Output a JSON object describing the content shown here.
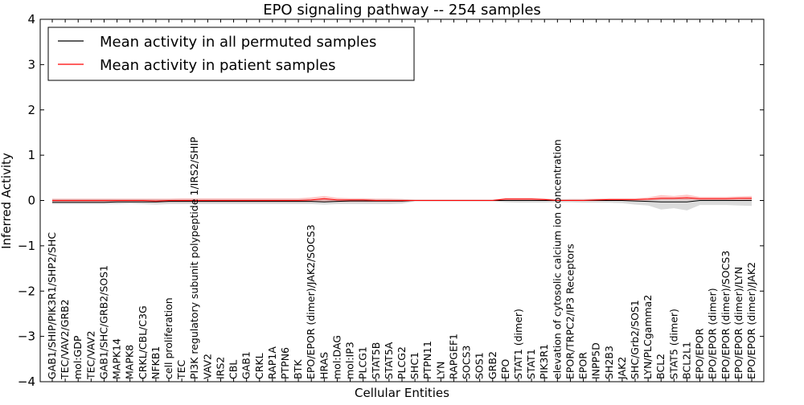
{
  "chart_data": {
    "type": "line",
    "title": "EPO signaling pathway -- 254 samples",
    "xlabel": "Cellular Entities",
    "ylabel": "Inferred Activity",
    "ylim": [
      -4,
      4
    ],
    "yticks": [
      -4,
      -3,
      -2,
      -1,
      0,
      1,
      2,
      3,
      4
    ],
    "ytick_labels": [
      "−4",
      "−3",
      "−2",
      "−1",
      "0",
      "1",
      "2",
      "3",
      "4"
    ],
    "legend": {
      "position": "top-left"
    },
    "categories": [
      "GAB1/SHIP/PIK3R1/SHP2/SHC",
      "TEC/VAV2/GRB2",
      "mol:GDP",
      "TEC/VAV2",
      "GAB1/SHC/GRB2/SOS1",
      "MAPK14",
      "MAPK8",
      "CRKL/CBL/C3G",
      "NFKB1",
      "cell proliferation",
      "TEC",
      "PI3K regulatory subunit polypeptide 1/IRS2/SHIP",
      "VAV2",
      "IRS2",
      "CBL",
      "GAB1",
      "CRKL",
      "RAP1A",
      "PTPN6",
      "BTK",
      "EPO/EPOR (dimer)/JAK2/SOCS3",
      "HRAS",
      "mol:DAG",
      "mol:IP3",
      "PLCG1",
      "STAT5B",
      "STAT5A",
      "PLCG2",
      "SHC1",
      "PTPN11",
      "LYN",
      "RAPGEF1",
      "SOCS3",
      "SOS1",
      "GRB2",
      "EPO",
      "STAT1 (dimer)",
      "STAT1",
      "PIK3R1",
      "elevation of cytosolic calcium ion concentration",
      "EPOR/TRPC2/IP3 Receptors",
      "EPOR",
      "INPP5D",
      "SH2B3",
      "JAK2",
      "SHC/Grb2/SOS1",
      "LYN/PLCgamma2",
      "BCL2",
      "STAT5 (dimer)",
      "BCL2L1",
      "EPO/EPOR",
      "EPO/EPOR (dimer)",
      "EPO/EPOR (dimer)/SOCS3",
      "EPO/EPOR (dimer)/LYN",
      "EPO/EPOR (dimer)/JAK2"
    ],
    "series": [
      {
        "name": "Mean activity in all permuted samples",
        "color": "#000000",
        "values": [
          -0.04,
          -0.04,
          -0.04,
          -0.04,
          -0.04,
          -0.03,
          -0.03,
          -0.03,
          -0.03,
          -0.02,
          -0.02,
          -0.02,
          -0.02,
          -0.02,
          -0.02,
          -0.02,
          -0.02,
          -0.02,
          -0.02,
          -0.02,
          -0.02,
          -0.03,
          -0.02,
          -0.01,
          -0.01,
          -0.01,
          -0.01,
          -0.01,
          0,
          0,
          0,
          0,
          0,
          0,
          0,
          0,
          0,
          0,
          0,
          0,
          0,
          0,
          0,
          0,
          0,
          -0.01,
          -0.02,
          -0.03,
          -0.03,
          -0.03,
          0,
          0,
          0,
          0,
          0
        ],
        "band_lower": [
          -0.08,
          -0.08,
          -0.08,
          -0.08,
          -0.08,
          -0.08,
          -0.07,
          -0.08,
          -0.09,
          -0.08,
          -0.08,
          -0.08,
          -0.08,
          -0.08,
          -0.08,
          -0.08,
          -0.08,
          -0.08,
          -0.08,
          -0.08,
          -0.08,
          -0.09,
          -0.08,
          -0.08,
          -0.08,
          -0.08,
          -0.08,
          -0.07,
          -0.02,
          -0.02,
          -0.02,
          -0.02,
          -0.02,
          -0.02,
          -0.02,
          -0.04,
          -0.05,
          -0.05,
          -0.05,
          -0.04,
          -0.04,
          -0.05,
          -0.05,
          -0.05,
          -0.06,
          -0.09,
          -0.11,
          -0.2,
          -0.17,
          -0.22,
          -0.1,
          -0.1,
          -0.1,
          -0.11,
          -0.12
        ],
        "band_upper": [
          0.03,
          0.03,
          0.03,
          0.03,
          0.03,
          0.03,
          0.03,
          0.03,
          0.03,
          0.03,
          0.03,
          0.03,
          0.03,
          0.03,
          0.03,
          0.03,
          0.03,
          0.03,
          0.03,
          0.03,
          0.03,
          0.03,
          0.03,
          0.03,
          0.03,
          0.03,
          0.03,
          0.03,
          0.02,
          0.02,
          0.02,
          0.02,
          0.02,
          0.02,
          0.02,
          0.03,
          0.03,
          0.03,
          0.03,
          0.03,
          0.03,
          0.03,
          0.03,
          0.03,
          0.03,
          0.03,
          0.03,
          0.05,
          0.04,
          0.05,
          0.03,
          0.03,
          0.03,
          0.03,
          0.04
        ]
      },
      {
        "name": "Mean activity in patient samples",
        "color": "#ff0000",
        "values": [
          0,
          0,
          0,
          0,
          0,
          0,
          0,
          0,
          -0.01,
          0,
          0,
          0,
          0,
          0,
          0,
          0,
          0,
          0,
          0,
          0,
          0.01,
          0.04,
          0.01,
          0.01,
          0.01,
          0,
          0,
          0,
          0,
          0,
          0,
          0,
          0,
          0,
          0,
          0.03,
          0.03,
          0.03,
          0.02,
          0,
          0,
          0,
          0.01,
          0.02,
          0.02,
          0.02,
          0.03,
          0.05,
          0.05,
          0.06,
          0.04,
          0.04,
          0.04,
          0.05,
          0.05
        ],
        "band_lower": [
          -0.03,
          -0.03,
          -0.03,
          -0.03,
          -0.03,
          -0.03,
          -0.03,
          -0.03,
          -0.04,
          -0.03,
          -0.03,
          -0.03,
          -0.03,
          -0.03,
          -0.03,
          -0.03,
          -0.03,
          -0.03,
          -0.03,
          -0.03,
          -0.03,
          -0.02,
          -0.03,
          -0.03,
          -0.03,
          -0.03,
          -0.03,
          -0.03,
          -0.01,
          -0.01,
          -0.01,
          -0.01,
          -0.01,
          -0.01,
          -0.01,
          0,
          0,
          0,
          0,
          -0.01,
          -0.01,
          -0.01,
          0,
          0,
          0,
          0,
          0,
          0.01,
          0.01,
          0.01,
          0.01,
          0.01,
          0.01,
          0.01,
          0.01
        ],
        "band_upper": [
          0.04,
          0.04,
          0.04,
          0.04,
          0.04,
          0.04,
          0.04,
          0.04,
          0.04,
          0.04,
          0.05,
          0.05,
          0.05,
          0.05,
          0.05,
          0.05,
          0.05,
          0.05,
          0.05,
          0.05,
          0.07,
          0.1,
          0.06,
          0.05,
          0.05,
          0.04,
          0.04,
          0.03,
          0.02,
          0.02,
          0.02,
          0.02,
          0.02,
          0.02,
          0.02,
          0.06,
          0.06,
          0.06,
          0.05,
          0.02,
          0.03,
          0.03,
          0.04,
          0.05,
          0.05,
          0.05,
          0.07,
          0.12,
          0.1,
          0.13,
          0.08,
          0.08,
          0.08,
          0.09,
          0.1
        ]
      }
    ]
  }
}
